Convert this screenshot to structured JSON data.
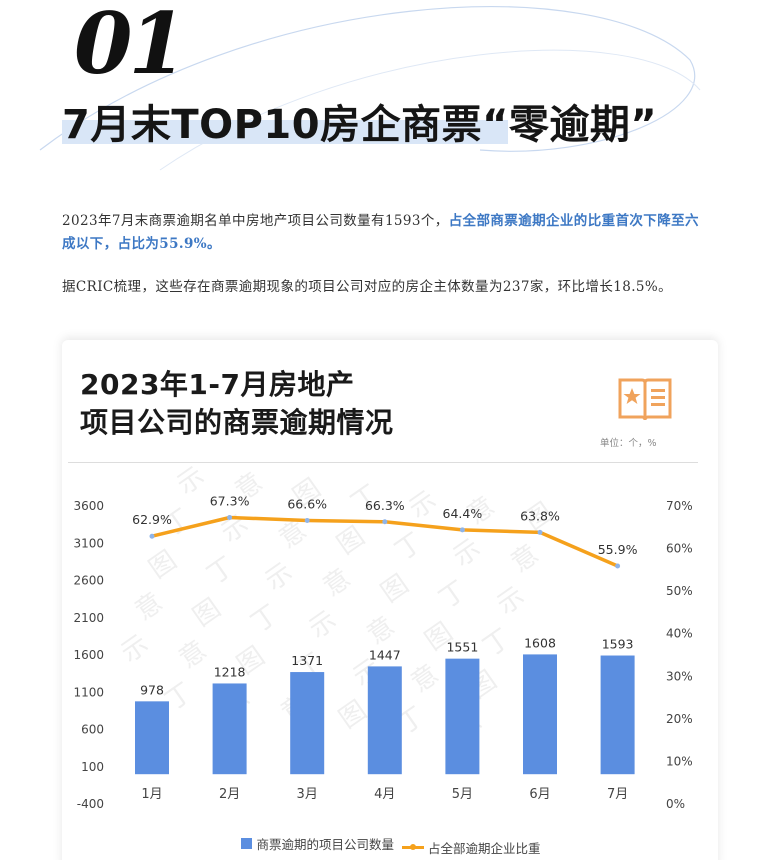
{
  "header": {
    "section_number": "01",
    "headline": "7月末TOP10房企商票“零逾期”"
  },
  "article": {
    "p1_normal": "2023年7月末商票逾期名单中房地产项目公司数量有1593个，",
    "p1_highlight": "占全部商票逾期企业的比重首次下降至六成以下，占比为55.9%。",
    "p2": "据CRIC梳理，这些存在商票逾期现象的项目公司对应的房企主体数量为237家，环比增长18.5%。"
  },
  "chart_card": {
    "title_line1": "2023年1-7月房地产",
    "title_line2": "项目公司的商票逾期情况",
    "unit_label": "单位：个，%",
    "badge_icon": "star-book-icon"
  },
  "colors": {
    "bar": "#5b8ee0",
    "line": "#f5a11c",
    "highlight": "#3d78c4"
  },
  "chart_data": {
    "type": "bar",
    "categories": [
      "1月",
      "2月",
      "3月",
      "4月",
      "5月",
      "6月",
      "7月"
    ],
    "series": [
      {
        "name": "商票逾期的项目公司数量",
        "type": "bar",
        "axis": "left",
        "values": [
          978,
          1218,
          1371,
          1447,
          1551,
          1608,
          1593
        ]
      },
      {
        "name": "占全部逾期企业比重",
        "type": "line",
        "axis": "right",
        "values": [
          62.9,
          67.3,
          66.6,
          66.3,
          64.4,
          63.8,
          55.9
        ],
        "labels": [
          "62.9%",
          "67.3%",
          "66.6%",
          "66.3%",
          "64.4%",
          "63.8%",
          "55.9%"
        ]
      }
    ],
    "y_left": {
      "min": -400,
      "max": 3600,
      "ticks": [
        -400,
        100,
        600,
        1100,
        1600,
        2100,
        2600,
        3100,
        3600
      ]
    },
    "y_right": {
      "min": 0,
      "max": 70,
      "ticks": [
        "0%",
        "10%",
        "20%",
        "30%",
        "40%",
        "50%",
        "60%",
        "70%"
      ],
      "tick_values": [
        0,
        10,
        20,
        30,
        40,
        50,
        60,
        70
      ]
    },
    "legend_position": "bottom",
    "grid": false
  }
}
